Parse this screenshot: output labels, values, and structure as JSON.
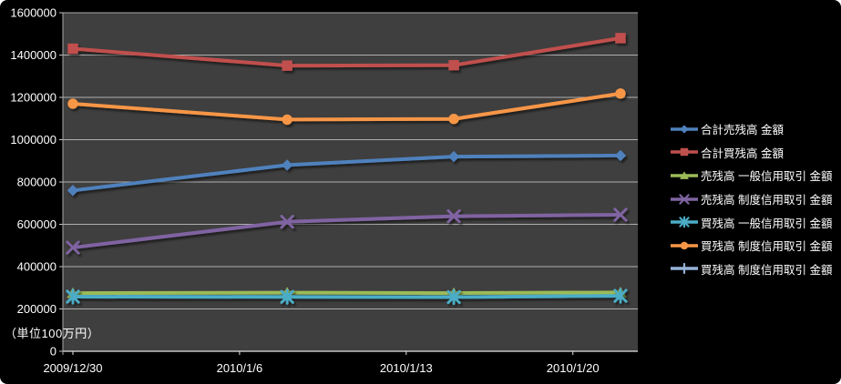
{
  "chart_data": {
    "type": "line",
    "unit_label": "（単位100万円）",
    "colors": {
      "outer_background": "#000000",
      "plot_background": "#3F3F3F",
      "gridline": "#C3C3C3",
      "axis_line": "#E3E3E3",
      "text": "#FFFFFF"
    },
    "legend_position": "right",
    "grid": "horizontal-major",
    "y_axis": {
      "min": 0,
      "max": 1600000,
      "step": 200000,
      "tick_labels": [
        "0",
        "200000",
        "400000",
        "600000",
        "800000",
        "1000000",
        "1200000",
        "1400000",
        "1600000"
      ]
    },
    "x_axis": {
      "tick_labels": [
        "2009/12/30",
        "2010/1/6",
        "2010/1/13",
        "2010/1/20"
      ],
      "tick_days": [
        0,
        7,
        14,
        21
      ]
    },
    "point_days": [
      0,
      9,
      16,
      23
    ],
    "series": [
      {
        "name": "合計売残高 金額",
        "marker": "diamond",
        "color": "#4F81BD",
        "values": [
          760000,
          880000,
          920000,
          925000
        ]
      },
      {
        "name": "合計買残高 金額",
        "marker": "square",
        "color": "#C0504D",
        "values": [
          1430000,
          1350000,
          1352000,
          1480000
        ]
      },
      {
        "name": "売残高 一般信用取引 金額",
        "marker": "triangle",
        "color": "#9BBB59",
        "values": [
          275000,
          277000,
          275000,
          278000
        ]
      },
      {
        "name": "売残高 制度信用取引 金額",
        "marker": "x",
        "color": "#8064A2",
        "values": [
          490000,
          612000,
          638000,
          645000
        ]
      },
      {
        "name": "買残高 一般信用取引 金額",
        "marker": "star",
        "color": "#4BACC6",
        "values": [
          258000,
          257000,
          256000,
          262000
        ]
      },
      {
        "name": "買残高 制度信用取引 金額",
        "marker": "circle",
        "color": "#F79646",
        "values": [
          1170000,
          1095000,
          1098000,
          1218000
        ]
      },
      {
        "name": "買残高 制度信用取引 金額",
        "marker": "plus",
        "color": "#95B3D7",
        "values": []
      }
    ]
  }
}
